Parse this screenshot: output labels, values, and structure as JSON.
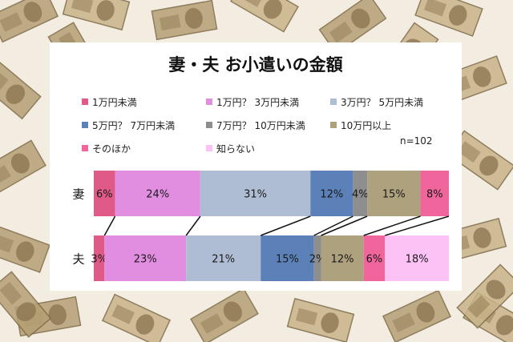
{
  "chart_data": {
    "type": "bar",
    "orientation": "horizontal",
    "stacked": "100%",
    "title": "妻・夫 お小遣いの金額",
    "note": "n=102",
    "categories": [
      "妻",
      "夫"
    ],
    "series": [
      {
        "name": "1万円未満",
        "color": "#e05a88",
        "values": [
          6,
          3
        ]
      },
      {
        "name": "1万円？ 3万円未満",
        "color": "#e28ee0",
        "values": [
          24,
          23
        ]
      },
      {
        "name": "3万円？ 5万円未満",
        "color": "#aebdd3",
        "values": [
          31,
          21
        ]
      },
      {
        "name": "5万円？ 7万円未満",
        "color": "#5b81b8",
        "values": [
          12,
          15
        ]
      },
      {
        "name": "7万円？ 10万円未満",
        "color": "#8e8e8e",
        "values": [
          4,
          2
        ]
      },
      {
        "name": "10万円以上",
        "color": "#ada17e",
        "values": [
          15,
          12
        ]
      },
      {
        "name": "そのほか",
        "color": "#f0659c",
        "values": [
          8,
          6
        ]
      },
      {
        "name": "知らない",
        "color": "#fdc2f5",
        "values": [
          0,
          18
        ]
      }
    ],
    "data_labels": [
      [
        "6%",
        "24%",
        "31%",
        "12%",
        "4%",
        "15%",
        "8%",
        ""
      ],
      [
        "3%",
        "23%",
        "21%",
        "15%",
        "2%",
        "12%",
        "6%",
        "18%"
      ]
    ],
    "legend_position": "top",
    "grid": false,
    "series_lines": true
  }
}
